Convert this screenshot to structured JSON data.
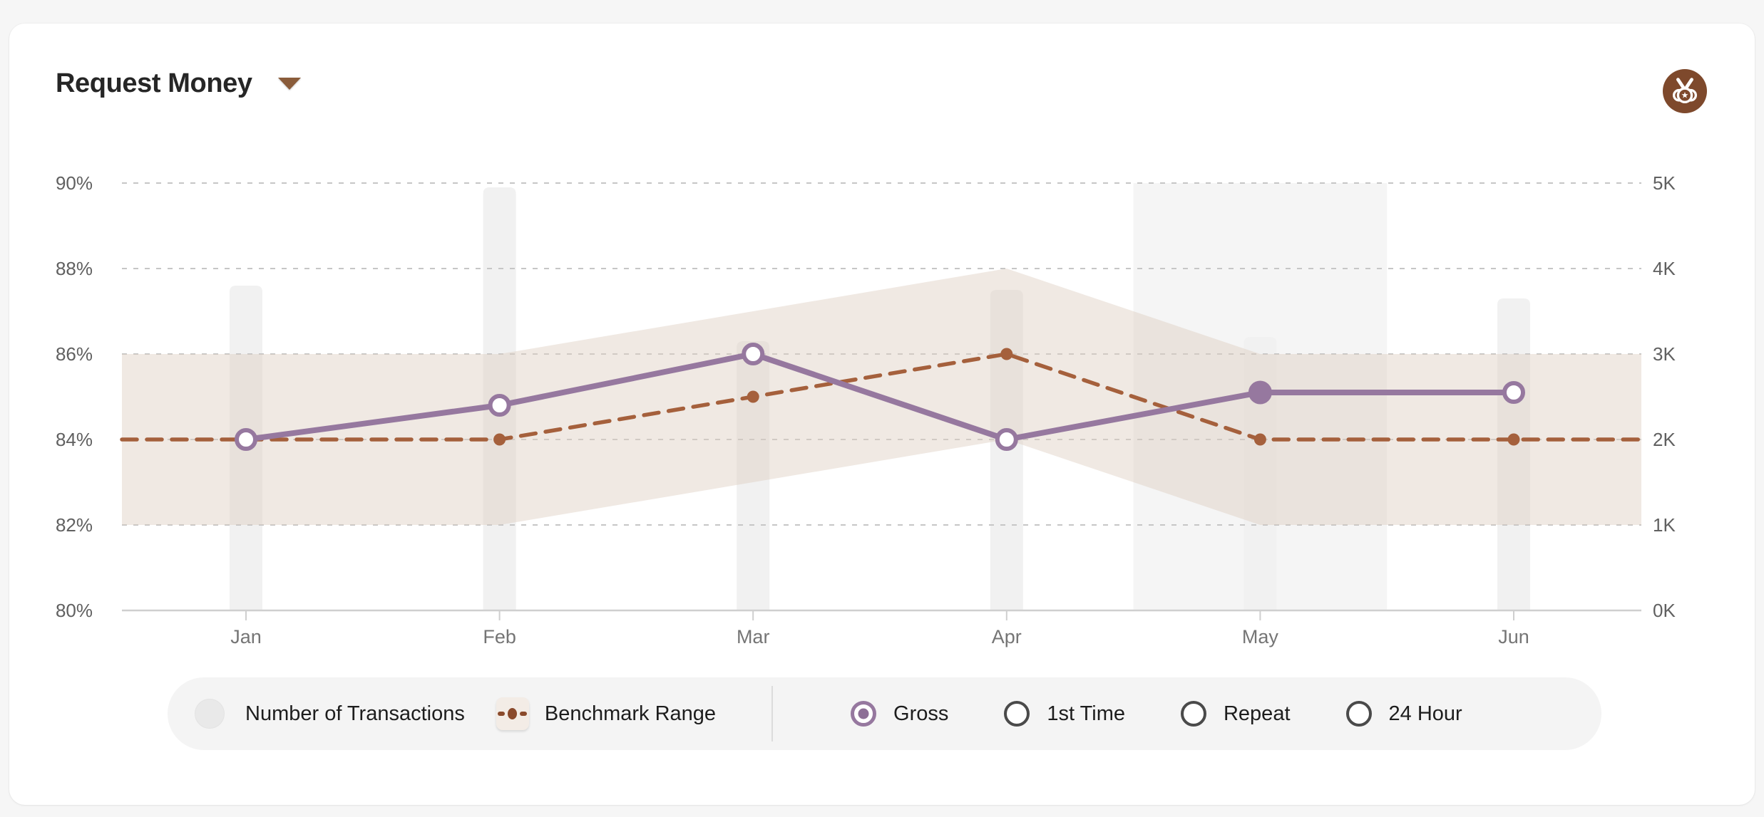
{
  "header": {
    "title": "Request Money",
    "caret_icon": "caret-down-icon",
    "badge_icon": "medal-icon"
  },
  "colors": {
    "gross_line": "#96789f",
    "gross_dot_fill": "#8d6f96",
    "benchmark_line": "#a5603c",
    "band_fill": "rgba(221,206,194,0.45)",
    "bar_fill": "#f1f1f1",
    "highlight_fill": "#f5f5f5",
    "grid_line": "#c6c6c6",
    "axis_line": "#cfcfcf",
    "tick_text": "#606060",
    "month_text": "#757575",
    "badge_brown": "#7e492c",
    "card_bg": "#ffffff",
    "page_bg": "#f6f6f6",
    "pill_bg": "#f4f4f4"
  },
  "chart_data": {
    "type": "line",
    "title": "Request Money",
    "categories": [
      "Jan",
      "Feb",
      "Mar",
      "Apr",
      "May",
      "Jun"
    ],
    "highlighted_category": "May",
    "grid": "dashed horizontal gridlines, solid baseline",
    "left_axis": {
      "unit": "%",
      "min": 80,
      "max": 90,
      "tick_values": [
        90,
        88,
        86,
        84,
        82,
        80
      ],
      "tick_labels": [
        "90%",
        "88%",
        "86%",
        "84%",
        "82%",
        "80%"
      ]
    },
    "right_axis": {
      "unit": "K",
      "min": 0,
      "max": 5,
      "tick_values": [
        5,
        4,
        3,
        2,
        1,
        0
      ],
      "tick_labels": [
        "5K",
        "4K",
        "3K",
        "2K",
        "1K",
        "0K"
      ]
    },
    "series": [
      {
        "name": "Gross",
        "type": "line",
        "axis": "left",
        "values": [
          84,
          84.8,
          86,
          84,
          85.1,
          85.1
        ],
        "marker": "open-circle",
        "highlighted_marker_index": 4
      },
      {
        "name": "Benchmark",
        "type": "dashed-line",
        "axis": "left",
        "values": [
          84,
          84,
          85,
          86,
          84,
          84
        ],
        "marker": "dot"
      },
      {
        "name": "Benchmark Range",
        "type": "band",
        "axis": "left",
        "low": [
          82,
          82,
          83,
          84,
          82,
          82
        ],
        "high": [
          86,
          86,
          87,
          88,
          86,
          86
        ]
      },
      {
        "name": "Number of Transactions",
        "type": "bar",
        "axis": "right",
        "values": [
          3.8,
          4.95,
          3.15,
          3.75,
          3.2,
          3.65
        ]
      }
    ]
  },
  "legend": {
    "toggles": [
      {
        "label": "Number of Transactions",
        "active": false
      },
      {
        "label": "Benchmark Range",
        "active": true
      }
    ],
    "radios": {
      "options": [
        "Gross",
        "1st Time",
        "Repeat",
        "24 Hour"
      ],
      "selected": "Gross"
    }
  }
}
